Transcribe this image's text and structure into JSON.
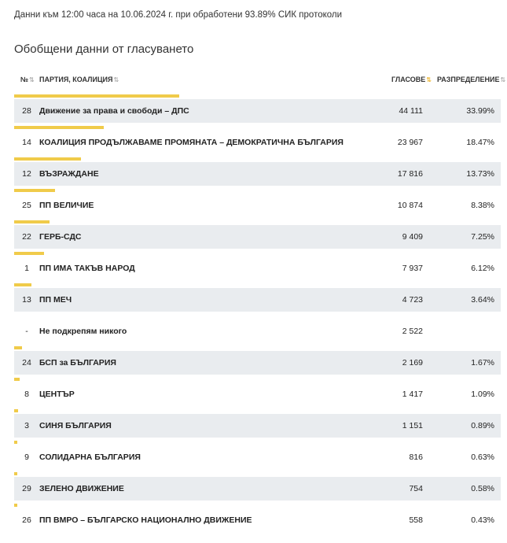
{
  "info": "Данни към 12:00 часа на 10.06.2024 г. при обработени 93.89% СИК протоколи",
  "section_title": "Обобщени данни от гласуването",
  "table": {
    "col_num": "№",
    "col_party": "ПАРТИЯ, КОАЛИЦИЯ",
    "col_votes": "ГЛАСОВЕ",
    "col_dist": "РАЗПРЕДЕЛЕНИЕ",
    "sort_icon": "⇅",
    "sort_active_icon": "⇅",
    "rows": [
      {
        "num": "28",
        "party": "Движение за права и свободи – ДПС",
        "votes": "44 111",
        "dist": "33.99%",
        "share": 33.99
      },
      {
        "num": "14",
        "party": "КОАЛИЦИЯ ПРОДЪЛЖАВАМЕ ПРОМЯНАТА – ДЕМОКРАТИЧНА БЪЛГАРИЯ",
        "votes": "23 967",
        "dist": "18.47%",
        "share": 18.47
      },
      {
        "num": "12",
        "party": "ВЪЗРАЖДАНЕ",
        "votes": "17 816",
        "dist": "13.73%",
        "share": 13.73
      },
      {
        "num": "25",
        "party": "ПП ВЕЛИЧИЕ",
        "votes": "10 874",
        "dist": "8.38%",
        "share": 8.38
      },
      {
        "num": "22",
        "party": "ГЕРБ-СДС",
        "votes": "9 409",
        "dist": "7.25%",
        "share": 7.25
      },
      {
        "num": "1",
        "party": "ПП ИМА ТАКЪВ НАРОД",
        "votes": "7 937",
        "dist": "6.12%",
        "share": 6.12
      },
      {
        "num": "13",
        "party": "ПП МЕЧ",
        "votes": "4 723",
        "dist": "3.64%",
        "share": 3.64
      },
      {
        "num": "-",
        "party": "Не подкрепям никого",
        "votes": "2 522",
        "dist": "",
        "share": 0
      },
      {
        "num": "24",
        "party": "БСП за БЪЛГАРИЯ",
        "votes": "2 169",
        "dist": "1.67%",
        "share": 1.67
      },
      {
        "num": "8",
        "party": "ЦЕНТЪР",
        "votes": "1 417",
        "dist": "1.09%",
        "share": 1.09
      },
      {
        "num": "3",
        "party": "СИНЯ БЪЛГАРИЯ",
        "votes": "1 151",
        "dist": "0.89%",
        "share": 0.89
      },
      {
        "num": "9",
        "party": "СОЛИДАРНА БЪЛГАРИЯ",
        "votes": "816",
        "dist": "0.63%",
        "share": 0.63
      },
      {
        "num": "29",
        "party": "ЗЕЛЕНО ДВИЖЕНИЕ",
        "votes": "754",
        "dist": "0.58%",
        "share": 0.58
      },
      {
        "num": "26",
        "party": "ПП ВМРО – БЪЛГАРСКО НАЦИОНАЛНО ДВИЖЕНИЕ",
        "votes": "558",
        "dist": "0.43%",
        "share": 0.43
      }
    ]
  },
  "colors": {
    "bar": "#f0cb4a",
    "row_bg": "#e9ecef",
    "sort_active": "#e8a400"
  }
}
